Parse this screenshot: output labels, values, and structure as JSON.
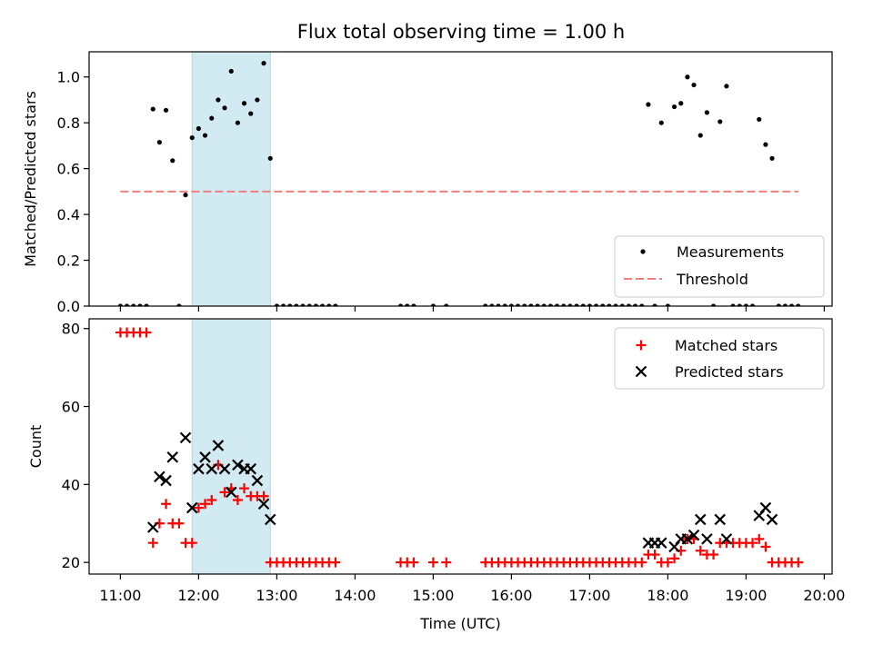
{
  "figure_title": "Flux total observing time = 1.00 h",
  "colors": {
    "measurement": "#000000",
    "threshold": "#f08080",
    "matched": "#ff0000",
    "predicted": "#000000",
    "highlight": "#add8e6"
  },
  "chart_data": [
    {
      "type": "scatter",
      "title": "Flux total observing time = 1.00 h",
      "xlabel": "",
      "ylabel": "Matched/Predicted stars",
      "x_unit": "hours UTC",
      "xlim": [
        10.6,
        20.1
      ],
      "ylim": [
        0.0,
        1.11
      ],
      "yticks": [
        0.0,
        0.2,
        0.4,
        0.6,
        0.8,
        1.0
      ],
      "ytick_labels": [
        "0.0",
        "0.2",
        "0.4",
        "0.6",
        "0.8",
        "1.0"
      ],
      "highlight_span": [
        11.917,
        12.917
      ],
      "legend_position": "lower right",
      "legend": [
        {
          "label": "Measurements",
          "marker": "dot"
        },
        {
          "label": "Threshold",
          "marker": "dashed-line"
        }
      ],
      "threshold": {
        "name": "Threshold",
        "value": 0.5,
        "x_range": [
          11.0,
          19.67
        ]
      },
      "series": [
        {
          "name": "Measurements",
          "points": [
            [
              11.0,
              0
            ],
            [
              11.083,
              0
            ],
            [
              11.167,
              0
            ],
            [
              11.25,
              0
            ],
            [
              11.333,
              0
            ],
            [
              11.417,
              0.86
            ],
            [
              11.5,
              0.715
            ],
            [
              11.583,
              0.855
            ],
            [
              11.667,
              0.635
            ],
            [
              11.75,
              0
            ],
            [
              11.833,
              0.485
            ],
            [
              11.917,
              0.735
            ],
            [
              12.0,
              0.775
            ],
            [
              12.083,
              0.745
            ],
            [
              12.167,
              0.82
            ],
            [
              12.25,
              0.9
            ],
            [
              12.333,
              0.865
            ],
            [
              12.417,
              1.025
            ],
            [
              12.5,
              0.8
            ],
            [
              12.583,
              0.885
            ],
            [
              12.667,
              0.84
            ],
            [
              12.75,
              0.9
            ],
            [
              12.833,
              1.06
            ],
            [
              12.917,
              0.645
            ],
            [
              13.0,
              0
            ],
            [
              13.083,
              0
            ],
            [
              13.167,
              0
            ],
            [
              13.25,
              0
            ],
            [
              13.333,
              0
            ],
            [
              13.417,
              0
            ],
            [
              13.5,
              0
            ],
            [
              13.583,
              0
            ],
            [
              13.667,
              0
            ],
            [
              13.75,
              0
            ],
            [
              14.583,
              0
            ],
            [
              14.667,
              0
            ],
            [
              14.75,
              0
            ],
            [
              15.0,
              0
            ],
            [
              15.167,
              0
            ],
            [
              15.667,
              0
            ],
            [
              15.75,
              0
            ],
            [
              15.833,
              0
            ],
            [
              15.917,
              0
            ],
            [
              16.0,
              0
            ],
            [
              16.083,
              0
            ],
            [
              16.167,
              0
            ],
            [
              16.25,
              0
            ],
            [
              16.333,
              0
            ],
            [
              16.417,
              0
            ],
            [
              16.5,
              0
            ],
            [
              16.583,
              0
            ],
            [
              16.667,
              0
            ],
            [
              16.75,
              0
            ],
            [
              16.833,
              0
            ],
            [
              16.917,
              0
            ],
            [
              17.0,
              0
            ],
            [
              17.083,
              0
            ],
            [
              17.167,
              0
            ],
            [
              17.25,
              0
            ],
            [
              17.333,
              0
            ],
            [
              17.417,
              0
            ],
            [
              17.5,
              0
            ],
            [
              17.583,
              0
            ],
            [
              17.667,
              0
            ],
            [
              17.75,
              0.88
            ],
            [
              17.833,
              0
            ],
            [
              17.917,
              0.8
            ],
            [
              18.0,
              0
            ],
            [
              18.083,
              0.87
            ],
            [
              18.167,
              0.885
            ],
            [
              18.25,
              1.0
            ],
            [
              18.333,
              0.965
            ],
            [
              18.417,
              0.745
            ],
            [
              18.5,
              0.845
            ],
            [
              18.583,
              0
            ],
            [
              18.667,
              0.805
            ],
            [
              18.75,
              0.96
            ],
            [
              18.833,
              0
            ],
            [
              18.917,
              0
            ],
            [
              19.0,
              0
            ],
            [
              19.083,
              0
            ],
            [
              19.167,
              0.815
            ],
            [
              19.25,
              0.705
            ],
            [
              19.333,
              0.645
            ],
            [
              19.417,
              0
            ],
            [
              19.5,
              0
            ],
            [
              19.583,
              0
            ],
            [
              19.667,
              0
            ]
          ]
        }
      ]
    },
    {
      "type": "scatter",
      "title": "",
      "xlabel": "Time (UTC)",
      "ylabel": "Count",
      "x_unit": "hours UTC",
      "xlim": [
        10.6,
        20.1
      ],
      "ylim": [
        17,
        82.5
      ],
      "yticks": [
        20,
        40,
        60,
        80
      ],
      "ytick_labels": [
        "20",
        "40",
        "60",
        "80"
      ],
      "xticks": [
        11,
        12,
        13,
        14,
        15,
        16,
        17,
        18,
        19,
        20
      ],
      "xtick_labels": [
        "11:00",
        "12:00",
        "13:00",
        "14:00",
        "15:00",
        "16:00",
        "17:00",
        "18:00",
        "19:00",
        "20:00"
      ],
      "highlight_span": [
        11.917,
        12.917
      ],
      "legend_position": "upper right",
      "legend": [
        {
          "label": "Matched stars",
          "marker": "plus"
        },
        {
          "label": "Predicted stars",
          "marker": "x"
        }
      ],
      "series": [
        {
          "name": "Matched stars",
          "points": [
            [
              11.0,
              79
            ],
            [
              11.083,
              79
            ],
            [
              11.167,
              79
            ],
            [
              11.25,
              79
            ],
            [
              11.333,
              79
            ],
            [
              11.417,
              25
            ],
            [
              11.5,
              30
            ],
            [
              11.583,
              35
            ],
            [
              11.667,
              30
            ],
            [
              11.75,
              30
            ],
            [
              11.833,
              25
            ],
            [
              11.917,
              25
            ],
            [
              12.0,
              34
            ],
            [
              12.083,
              35
            ],
            [
              12.167,
              36
            ],
            [
              12.25,
              45
            ],
            [
              12.333,
              38
            ],
            [
              12.417,
              39
            ],
            [
              12.5,
              36
            ],
            [
              12.583,
              39
            ],
            [
              12.667,
              37
            ],
            [
              12.75,
              37
            ],
            [
              12.833,
              37
            ],
            [
              12.917,
              20
            ],
            [
              13.0,
              20
            ],
            [
              13.083,
              20
            ],
            [
              13.167,
              20
            ],
            [
              13.25,
              20
            ],
            [
              13.333,
              20
            ],
            [
              13.417,
              20
            ],
            [
              13.5,
              20
            ],
            [
              13.583,
              20
            ],
            [
              13.667,
              20
            ],
            [
              13.75,
              20
            ],
            [
              14.583,
              20
            ],
            [
              14.667,
              20
            ],
            [
              14.75,
              20
            ],
            [
              15.0,
              20
            ],
            [
              15.167,
              20
            ],
            [
              15.667,
              20
            ],
            [
              15.75,
              20
            ],
            [
              15.833,
              20
            ],
            [
              15.917,
              20
            ],
            [
              16.0,
              20
            ],
            [
              16.083,
              20
            ],
            [
              16.167,
              20
            ],
            [
              16.25,
              20
            ],
            [
              16.333,
              20
            ],
            [
              16.417,
              20
            ],
            [
              16.5,
              20
            ],
            [
              16.583,
              20
            ],
            [
              16.667,
              20
            ],
            [
              16.75,
              20
            ],
            [
              16.833,
              20
            ],
            [
              16.917,
              20
            ],
            [
              17.0,
              20
            ],
            [
              17.083,
              20
            ],
            [
              17.167,
              20
            ],
            [
              17.25,
              20
            ],
            [
              17.333,
              20
            ],
            [
              17.417,
              20
            ],
            [
              17.5,
              20
            ],
            [
              17.583,
              20
            ],
            [
              17.667,
              20
            ],
            [
              17.75,
              22
            ],
            [
              17.833,
              22
            ],
            [
              17.917,
              20
            ],
            [
              18.0,
              20
            ],
            [
              18.083,
              21
            ],
            [
              18.167,
              23
            ],
            [
              18.25,
              26
            ],
            [
              18.333,
              26
            ],
            [
              18.417,
              23
            ],
            [
              18.5,
              22
            ],
            [
              18.583,
              22
            ],
            [
              18.667,
              25
            ],
            [
              18.75,
              25
            ],
            [
              18.833,
              25
            ],
            [
              18.917,
              25
            ],
            [
              19.0,
              25
            ],
            [
              19.083,
              25
            ],
            [
              19.167,
              26
            ],
            [
              19.25,
              24
            ],
            [
              19.333,
              20
            ],
            [
              19.417,
              20
            ],
            [
              19.5,
              20
            ],
            [
              19.583,
              20
            ],
            [
              19.667,
              20
            ]
          ]
        },
        {
          "name": "Predicted stars",
          "points": [
            [
              11.417,
              29
            ],
            [
              11.5,
              42
            ],
            [
              11.583,
              41
            ],
            [
              11.667,
              47
            ],
            [
              11.833,
              52
            ],
            [
              11.917,
              34
            ],
            [
              12.0,
              44
            ],
            [
              12.083,
              47
            ],
            [
              12.167,
              44
            ],
            [
              12.25,
              50
            ],
            [
              12.333,
              44
            ],
            [
              12.417,
              38
            ],
            [
              12.5,
              45
            ],
            [
              12.583,
              44
            ],
            [
              12.667,
              44
            ],
            [
              12.75,
              41
            ],
            [
              12.833,
              35
            ],
            [
              12.917,
              31
            ],
            [
              17.75,
              25
            ],
            [
              17.833,
              25
            ],
            [
              17.917,
              25
            ],
            [
              18.083,
              24
            ],
            [
              18.167,
              26
            ],
            [
              18.25,
              26
            ],
            [
              18.333,
              27
            ],
            [
              18.417,
              31
            ],
            [
              18.5,
              26
            ],
            [
              18.667,
              31
            ],
            [
              18.75,
              26
            ],
            [
              19.167,
              32
            ],
            [
              19.25,
              34
            ],
            [
              19.333,
              31
            ]
          ]
        }
      ]
    }
  ]
}
